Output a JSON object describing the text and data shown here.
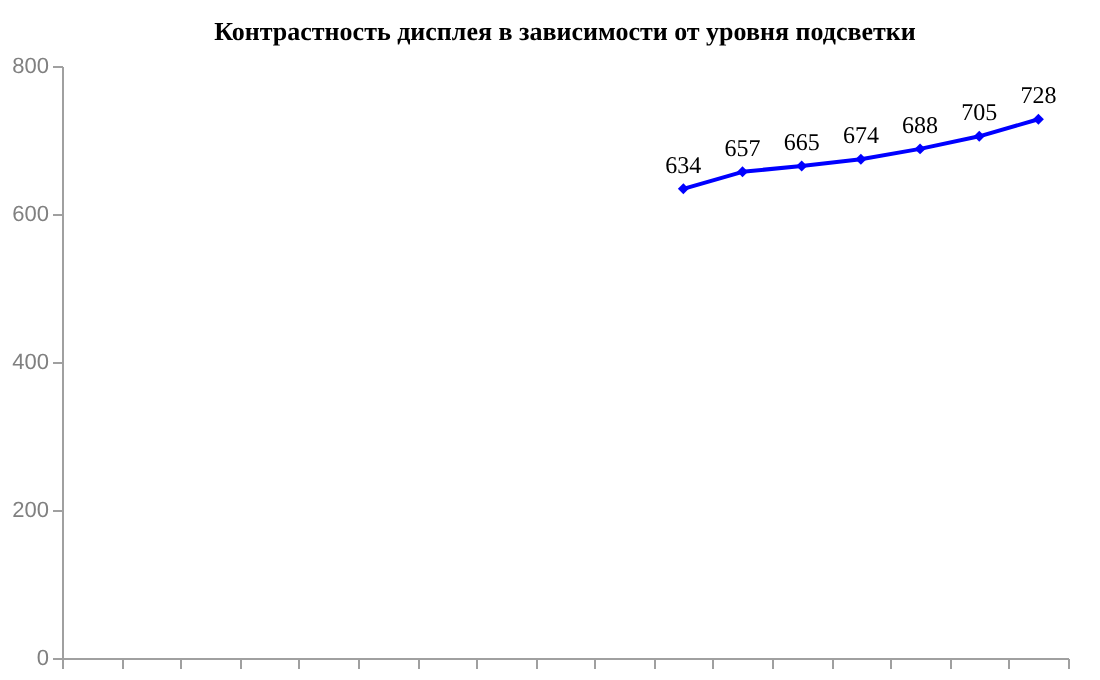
{
  "chart_data": {
    "type": "line",
    "title": "Контрастность дисплея в зависимости от уровня подсветки",
    "categories": [
      null,
      null,
      null,
      null,
      null,
      null,
      null,
      null,
      null,
      null,
      null,
      null,
      null,
      null,
      null,
      null,
      null
    ],
    "series": [
      {
        "color": "#0000ff",
        "values": [
          null,
          null,
          null,
          null,
          null,
          null,
          null,
          null,
          null,
          null,
          634,
          657,
          665,
          674,
          688,
          705,
          728
        ]
      }
    ],
    "ylim": [
      0,
      800
    ],
    "yticks": [
      0,
      200,
      400,
      600,
      800
    ],
    "grid": false,
    "marker": "diamond",
    "data_labels": true,
    "tick_labels": "y"
  }
}
